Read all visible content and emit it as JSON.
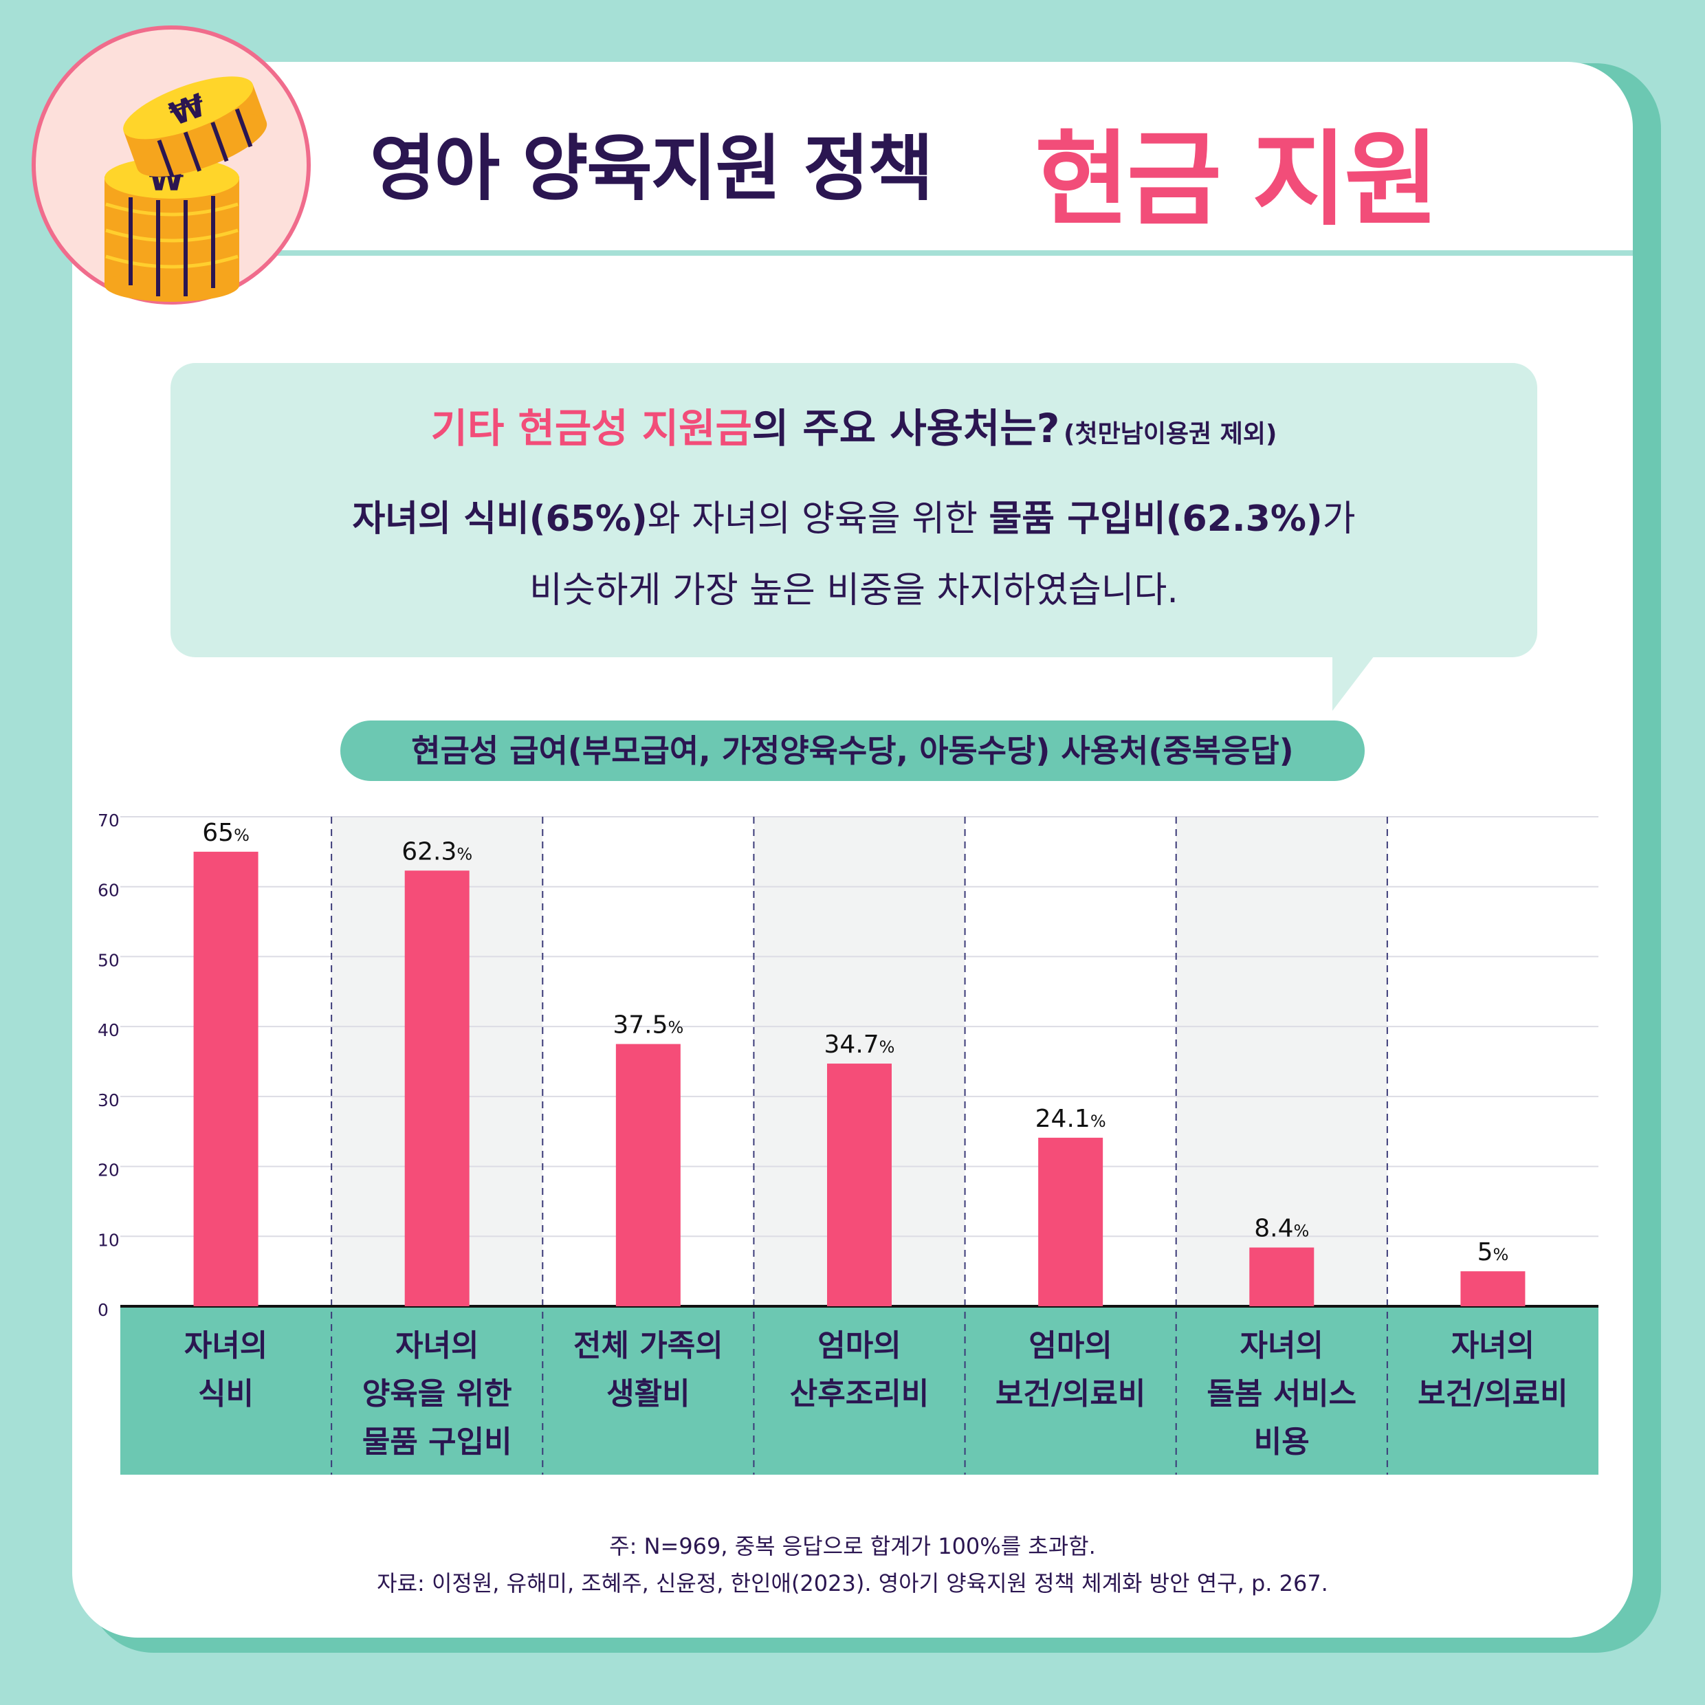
{
  "header": {
    "title_main": "영아 양육지원 정책",
    "title_accent": "현금 지원",
    "coin_symbol": "₩"
  },
  "bubble": {
    "question_highlight": "기타 현금성 지원금",
    "question_rest": "의 주요 사용처는?",
    "question_note": "(첫만남이용권 제외)",
    "line1_bold1": "자녀의 식비(65%)",
    "line1_mid": "와 자녀의 양육을 위한 ",
    "line1_bold2": "물품 구입비(62.3%)",
    "line1_end": "가",
    "line2": "비슷하게 가장 높은 비중을 차지하였습니다."
  },
  "chart_title": "현금성 급여(부모급여, 가정양육수당, 아동수당) 사용처(중복응답)",
  "chart_data": {
    "type": "bar",
    "categories": [
      [
        "자녀의",
        "식비"
      ],
      [
        "자녀의",
        "양육을 위한",
        "물품 구입비"
      ],
      [
        "전체 가족의",
        "생활비"
      ],
      [
        "엄마의",
        "산후조리비"
      ],
      [
        "엄마의",
        "보건/의료비"
      ],
      [
        "자녀의",
        "돌봄 서비스",
        "비용"
      ],
      [
        "자녀의",
        "보건/의료비"
      ]
    ],
    "values": [
      65,
      62.3,
      37.5,
      34.7,
      24.1,
      8.4,
      5
    ],
    "value_labels": [
      "65",
      "62.3",
      "37.5",
      "34.7",
      "24.1",
      "8.4",
      "5"
    ],
    "unit": "%",
    "yticks": [
      0,
      10,
      20,
      30,
      40,
      50,
      60,
      70
    ],
    "ylim": [
      0,
      70
    ],
    "grid": true,
    "bar_color": "#f54d78",
    "category_band_color": "#6cc8b2",
    "shaded_column_color": "#f2f3f3"
  },
  "footnotes": {
    "note": "주: N=969, 중복 응답으로 합계가 100%를 초과함.",
    "source": "자료: 이정원, 유해미, 조혜주, 신윤정, 한인애(2023). 영아기 양육지원 정책 체계화 방안 연구, p. 267."
  },
  "colors": {
    "background": "#a6e0d6",
    "accent_pink": "#f24d79",
    "navy": "#2b1651",
    "teal": "#6cc8b2",
    "bubble": "#d2efe8"
  }
}
